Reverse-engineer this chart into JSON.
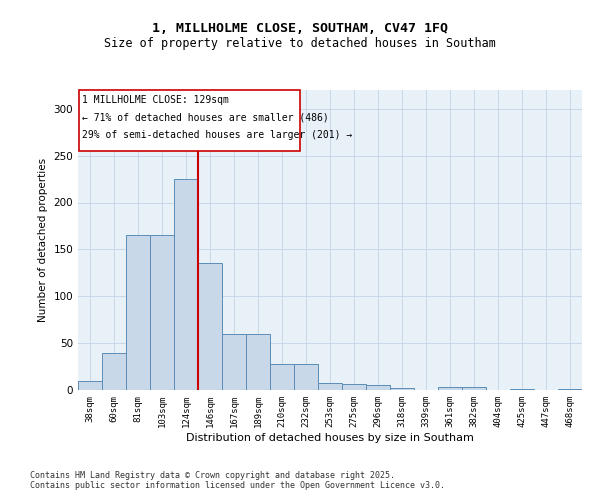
{
  "title_line1": "1, MILLHOLME CLOSE, SOUTHAM, CV47 1FQ",
  "title_line2": "Size of property relative to detached houses in Southam",
  "xlabel": "Distribution of detached houses by size in Southam",
  "ylabel": "Number of detached properties",
  "bar_labels": [
    "38sqm",
    "60sqm",
    "81sqm",
    "103sqm",
    "124sqm",
    "146sqm",
    "167sqm",
    "189sqm",
    "210sqm",
    "232sqm",
    "253sqm",
    "275sqm",
    "296sqm",
    "318sqm",
    "339sqm",
    "361sqm",
    "382sqm",
    "404sqm",
    "425sqm",
    "447sqm",
    "468sqm"
  ],
  "bar_values": [
    10,
    40,
    165,
    165,
    225,
    135,
    60,
    60,
    28,
    28,
    8,
    6,
    5,
    2,
    0,
    3,
    3,
    0,
    1,
    0,
    1
  ],
  "bar_color": "#c8d8e8",
  "bar_edge_color": "#5b8db8",
  "property_label": "1 MILLHOLME CLOSE: 129sqm",
  "annotation_line1": "← 71% of detached houses are smaller (486)",
  "annotation_line2": "29% of semi-detached houses are larger (201) →",
  "vline_color": "#cc0000",
  "vline_bar_index": 4.5,
  "annotation_box_color": "#cc0000",
  "ylim": [
    0,
    320
  ],
  "yticks": [
    0,
    50,
    100,
    150,
    200,
    250,
    300
  ],
  "grid_color": "#c8d8e8",
  "bg_color": "#e8f0f8",
  "footer_line1": "Contains HM Land Registry data © Crown copyright and database right 2025.",
  "footer_line2": "Contains public sector information licensed under the Open Government Licence v3.0."
}
